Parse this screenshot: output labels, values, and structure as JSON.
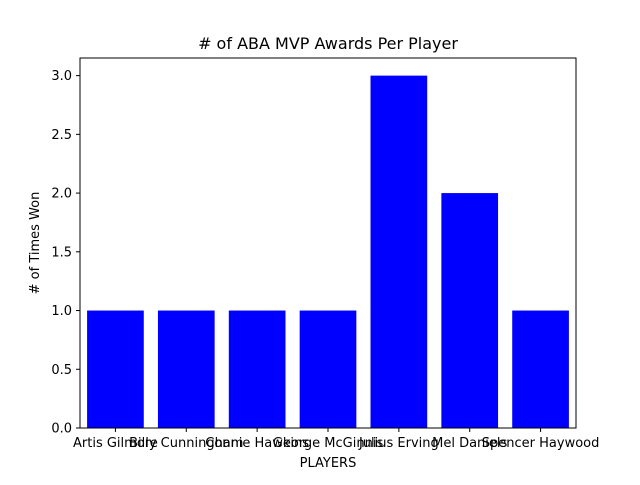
{
  "chart_data": {
    "type": "bar",
    "title": "# of ABA MVP Awards Per Player",
    "xlabel": "PLAYERS",
    "ylabel": "# of Times Won",
    "categories": [
      "Artis Gilmore",
      "Billy Cunningham",
      "Connie Hawkins",
      "George McGinnis",
      "Julius Erving",
      "Mel Daniels",
      "Spencer Haywood"
    ],
    "values": [
      1,
      1,
      1,
      1,
      3,
      2,
      1
    ],
    "ylim": [
      0,
      3.15
    ],
    "yticks": [
      "0.0",
      "0.5",
      "1.0",
      "1.5",
      "2.0",
      "2.5",
      "3.0"
    ],
    "grid": false,
    "legend": "none",
    "bar_color": "#0000ff"
  }
}
